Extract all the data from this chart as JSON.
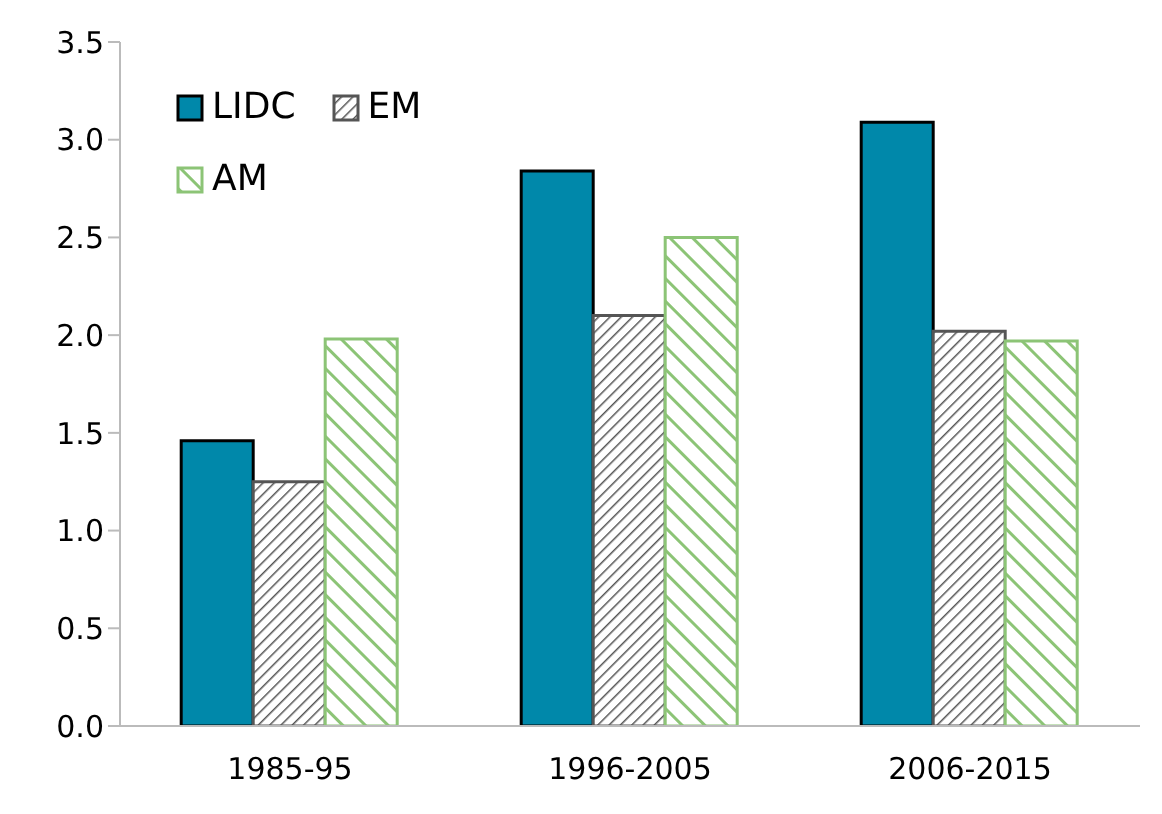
{
  "chart_data": {
    "type": "bar",
    "categories": [
      "1985-95",
      "1996-2005",
      "2006-2015"
    ],
    "series": [
      {
        "name": "LIDC",
        "color": "#0088aa",
        "values": [
          1.46,
          2.84,
          3.09
        ]
      },
      {
        "name": "EM",
        "color": "#555555",
        "values": [
          1.25,
          2.1,
          2.02
        ]
      },
      {
        "name": "AM",
        "color": "#8cc476",
        "values": [
          1.98,
          2.5,
          1.97
        ]
      }
    ],
    "ylim": [
      0,
      3.5
    ],
    "yticks": [
      {
        "value": 0,
        "label": "0.0"
      },
      0.5,
      {
        "value": 1,
        "label": "1.0"
      },
      1.5,
      {
        "value": 2,
        "label": "2.0"
      },
      2.5,
      {
        "value": 3,
        "label": "3.0"
      },
      3.5
    ],
    "grid": false,
    "legend": "top left"
  }
}
